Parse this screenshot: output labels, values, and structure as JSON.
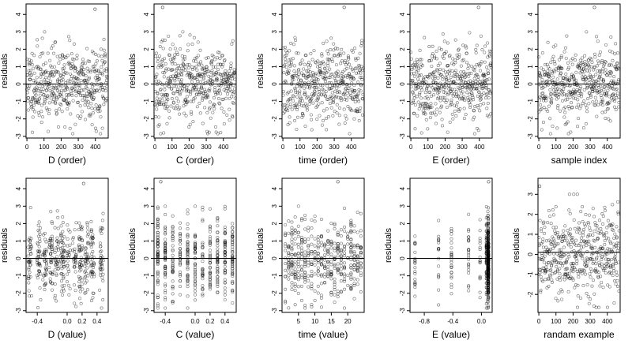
{
  "chart_data": [
    {
      "type": "scatter",
      "xlabel": "D (order)",
      "ylabel": "residuals",
      "xlim": [
        -5,
        475
      ],
      "ylim": [
        -3.1,
        4.6
      ],
      "xticks": [
        0,
        100,
        200,
        300,
        400
      ],
      "xtick_labels": [
        "0",
        "100",
        "200",
        "300",
        "400"
      ],
      "yticks": [
        -3,
        -2,
        -1,
        0,
        1,
        2,
        3,
        4
      ],
      "ytick_labels": [
        "-3",
        "-2",
        "-1",
        "0",
        "1",
        "2",
        "3",
        "4"
      ],
      "hline": 0,
      "n_points": 470,
      "seed": 11,
      "x_kind": "index",
      "outlier": [
        398,
        4.3
      ]
    },
    {
      "type": "scatter",
      "xlabel": "C (order)",
      "ylabel": "residuals",
      "xlim": [
        -5,
        475
      ],
      "ylim": [
        -3.1,
        4.6
      ],
      "xticks": [
        0,
        100,
        200,
        300,
        400
      ],
      "xtick_labels": [
        "0",
        "100",
        "200",
        "300",
        "400"
      ],
      "yticks": [
        -3,
        -2,
        -1,
        0,
        1,
        2,
        3,
        4
      ],
      "ytick_labels": [
        "-3",
        "-2",
        "-1",
        "0",
        "1",
        "2",
        "3",
        "4"
      ],
      "hline": 0,
      "n_points": 470,
      "seed": 23,
      "x_kind": "index",
      "outlier": [
        45,
        4.4
      ]
    },
    {
      "type": "scatter",
      "xlabel": "time (order)",
      "ylabel": "residuals",
      "xlim": [
        -5,
        475
      ],
      "ylim": [
        -3.1,
        4.6
      ],
      "xticks": [
        0,
        100,
        200,
        300,
        400
      ],
      "xtick_labels": [
        "0",
        "100",
        "200",
        "300",
        "400"
      ],
      "yticks": [
        -3,
        -2,
        -1,
        0,
        1,
        2,
        3,
        4
      ],
      "ytick_labels": [
        "-3",
        "-2",
        "-1",
        "0",
        "1",
        "2",
        "3",
        "4"
      ],
      "hline": 0,
      "n_points": 470,
      "seed": 37,
      "x_kind": "index",
      "outlier": [
        358,
        4.4
      ]
    },
    {
      "type": "scatter",
      "xlabel": "E (order)",
      "ylabel": "residuals",
      "xlim": [
        -5,
        475
      ],
      "ylim": [
        -3.1,
        4.6
      ],
      "xticks": [
        0,
        100,
        200,
        300,
        400
      ],
      "xtick_labels": [
        "0",
        "100",
        "200",
        "300",
        "400"
      ],
      "yticks": [
        -3,
        -2,
        -1,
        0,
        1,
        2,
        3,
        4
      ],
      "ytick_labels": [
        "-3",
        "-2",
        "-1",
        "0",
        "1",
        "2",
        "3",
        "4"
      ],
      "hline": 0,
      "n_points": 470,
      "seed": 41,
      "x_kind": "index",
      "outlier": [
        395,
        4.4
      ]
    },
    {
      "type": "scatter",
      "xlabel": "sample index",
      "ylabel": "residuals",
      "xlim": [
        -5,
        475
      ],
      "ylim": [
        -3.1,
        4.6
      ],
      "xticks": [
        0,
        100,
        200,
        300,
        400
      ],
      "xtick_labels": [
        "0",
        "100",
        "200",
        "300",
        "400"
      ],
      "yticks": [
        -3,
        -2,
        -1,
        0,
        1,
        2,
        3,
        4
      ],
      "ytick_labels": [
        "-3",
        "-2",
        "-1",
        "0",
        "1",
        "2",
        "3",
        "4"
      ],
      "hline": 0,
      "n_points": 470,
      "seed": 53,
      "x_kind": "index",
      "outlier": [
        325,
        4.4
      ]
    },
    {
      "type": "scatter",
      "xlabel": "D (value)",
      "ylabel": "residuals",
      "xlim": [
        -0.55,
        0.55
      ],
      "ylim": [
        -3.1,
        4.6
      ],
      "xticks": [
        -0.4,
        0,
        0.2,
        0.4
      ],
      "xtick_labels": [
        "-0.4",
        "0.0",
        "0.2",
        "0.4"
      ],
      "yticks": [
        -3,
        -2,
        -1,
        0,
        1,
        2,
        3,
        4
      ],
      "ytick_labels": [
        "-3",
        "-2",
        "-1",
        "0",
        "1",
        "2",
        "3",
        "4"
      ],
      "hline": 0,
      "n_points": 470,
      "seed": 61,
      "x_kind": "clustered",
      "x_levels": [
        -0.5,
        -0.38,
        -0.3,
        -0.22,
        -0.14,
        -0.06,
        0.02,
        0.1,
        0.18,
        0.26,
        0.34,
        0.46
      ],
      "outlier": [
        0.22,
        4.3
      ]
    },
    {
      "type": "scatter",
      "xlabel": "C (value)",
      "ylabel": "residuals",
      "xlim": [
        -0.55,
        0.55
      ],
      "ylim": [
        -3.1,
        4.6
      ],
      "xticks": [
        -0.4,
        0,
        0.2,
        0.4
      ],
      "xtick_labels": [
        "-0.4",
        "0.0",
        "0.2",
        "0.4"
      ],
      "yticks": [
        -3,
        -2,
        -1,
        0,
        1,
        2,
        3,
        4
      ],
      "ytick_labels": [
        "-3",
        "-2",
        "-1",
        "0",
        "1",
        "2",
        "3",
        "4"
      ],
      "hline": 0,
      "n_points": 470,
      "seed": 67,
      "x_kind": "levels",
      "x_levels": [
        -0.5,
        -0.4,
        -0.3,
        -0.2,
        -0.1,
        0,
        0.1,
        0.2,
        0.3,
        0.4,
        0.5
      ],
      "outlier": [
        -0.46,
        4.4
      ]
    },
    {
      "type": "scatter",
      "xlabel": "time (value)",
      "ylabel": "residuals",
      "xlim": [
        0,
        25
      ],
      "ylim": [
        -3.1,
        4.6
      ],
      "xticks": [
        5,
        10,
        15,
        20
      ],
      "xtick_labels": [
        "5",
        "10",
        "15",
        "20"
      ],
      "yticks": [
        -3,
        -2,
        -1,
        0,
        1,
        2,
        3,
        4
      ],
      "ytick_labels": [
        "-3",
        "-2",
        "-1",
        "0",
        "1",
        "2",
        "3",
        "4"
      ],
      "hline": 0,
      "n_points": 470,
      "seed": 71,
      "x_kind": "levels",
      "x_levels": [
        1,
        2,
        3,
        4,
        5,
        6,
        7,
        8,
        9,
        10,
        11,
        12,
        13,
        14,
        15,
        16,
        17,
        18,
        19,
        20,
        21,
        22,
        23,
        24
      ],
      "outlier": [
        17,
        4.4
      ]
    },
    {
      "type": "scatter",
      "xlabel": "E (value)",
      "ylabel": "residuals",
      "xlim": [
        -1.0,
        0.15
      ],
      "ylim": [
        -3.1,
        4.6
      ],
      "xticks": [
        -0.8,
        -0.4,
        0
      ],
      "xtick_labels": [
        "-0.8",
        "-0.4",
        "0.0"
      ],
      "yticks": [
        -3,
        -2,
        -1,
        0,
        1,
        2,
        3,
        4
      ],
      "ytick_labels": [
        "-3",
        "-2",
        "-1",
        "0",
        "1",
        "2",
        "3",
        "4"
      ],
      "hline": 0,
      "n_points": 470,
      "seed": 79,
      "x_kind": "skewed",
      "x_levels": [
        -0.93,
        -0.6,
        -0.42,
        -0.18,
        -0.02,
        0.07,
        0.09,
        0.1
      ],
      "outlier": [
        0.1,
        4.4
      ]
    },
    {
      "type": "scatter",
      "xlabel": "randam example",
      "ylabel": "residuals",
      "xlim": [
        -5,
        475
      ],
      "ylim": [
        -2.9,
        3.8
      ],
      "xticks": [
        0,
        100,
        200,
        300,
        400
      ],
      "xtick_labels": [
        "0",
        "100",
        "200",
        "300",
        "400"
      ],
      "yticks": [
        -2,
        -1,
        0,
        1,
        2,
        3
      ],
      "ytick_labels": [
        "-2",
        "-1",
        "0",
        "1",
        "2",
        "3"
      ],
      "hline": 0.1,
      "n_points": 470,
      "seed": 89,
      "x_kind": "index",
      "outlier": [
        5,
        3.4
      ]
    }
  ]
}
